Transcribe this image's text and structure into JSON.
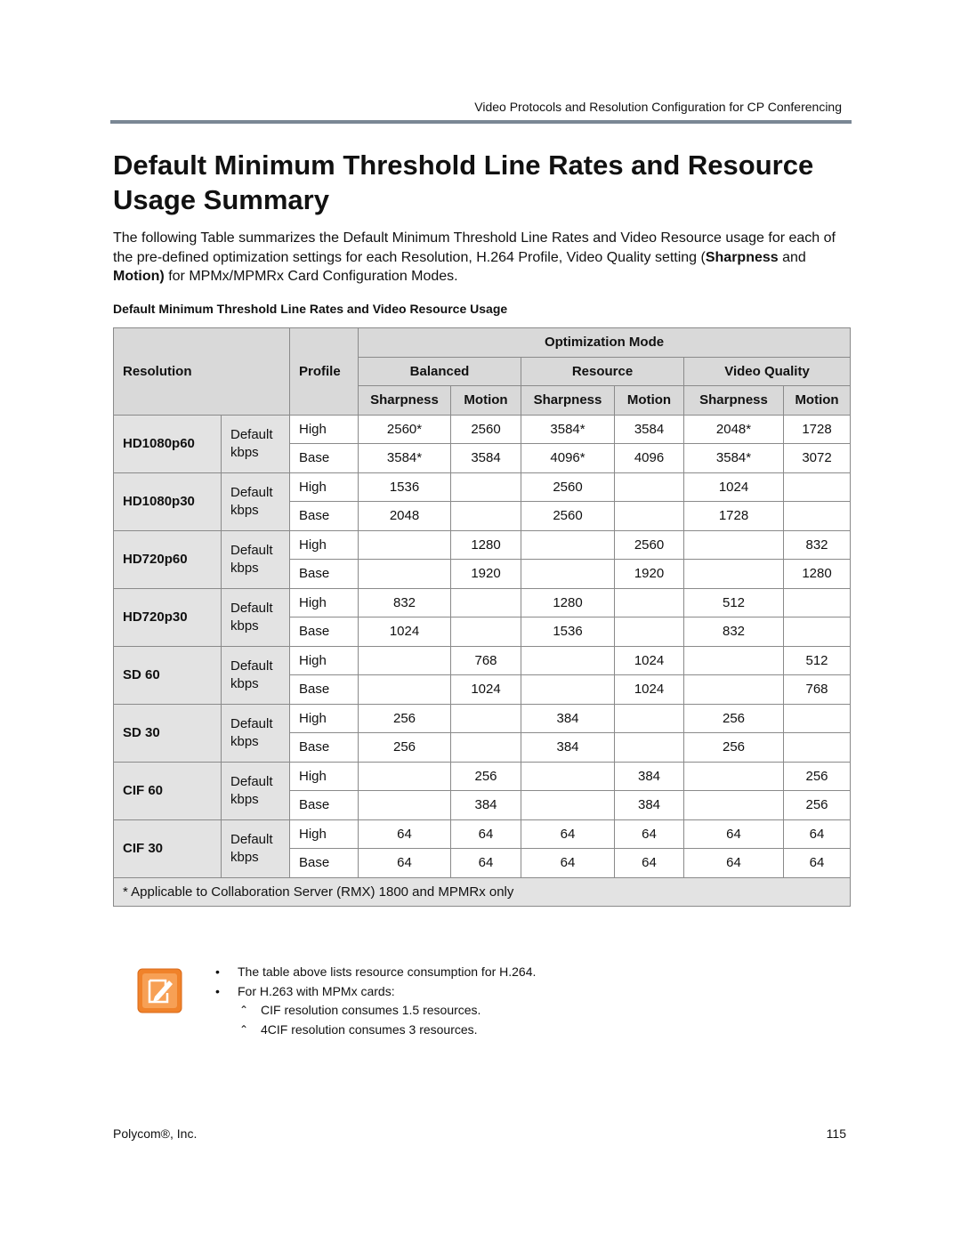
{
  "header": {
    "text": "Video Protocols and Resolution Configuration for CP Conferencing"
  },
  "title": "Default Minimum Threshold Line Rates and Resource Usage Summary",
  "intro": {
    "parts": [
      {
        "text": "The following Table summarizes the Default Minimum Threshold Line Rates and Video Resource usage for each of the pre-defined optimization settings for each Resolution, H.264 Profile, Video Quality setting (",
        "bold": false
      },
      {
        "text": "Sharpness",
        "bold": true
      },
      {
        "text": " and ",
        "bold": false
      },
      {
        "text": "Motion)",
        "bold": true
      },
      {
        "text": " for MPMx/MPMRx Card Configuration Modes.",
        "bold": false
      }
    ]
  },
  "table": {
    "caption": "Default Minimum Threshold Line Rates and Video Resource Usage",
    "headers": {
      "resolution": "Resolution",
      "profile": "Profile",
      "optimization": "Optimization Mode",
      "groups": [
        "Balanced",
        "Resource",
        "Video Quality"
      ],
      "sub": [
        "Sharpness",
        "Motion",
        "Sharpness",
        "Motion",
        "Sharpness",
        "Motion"
      ]
    },
    "rows": [
      {
        "resolution": "HD1080p60",
        "profile": "Default kbps",
        "lines": [
          {
            "quality": "High",
            "cells": [
              "2560*",
              "2560",
              "3584*",
              "3584",
              "2048*",
              "1728"
            ]
          },
          {
            "quality": "Base",
            "cells": [
              "3584*",
              "3584",
              "4096*",
              "4096",
              "3584*",
              "3072"
            ]
          }
        ]
      },
      {
        "resolution": "HD1080p30",
        "profile": "Default kbps",
        "lines": [
          {
            "quality": "High",
            "cells": [
              "1536",
              null,
              "2560",
              null,
              "1024",
              null
            ]
          },
          {
            "quality": "Base",
            "cells": [
              "2048",
              null,
              "2560",
              null,
              "1728",
              null
            ]
          }
        ]
      },
      {
        "resolution": "HD720p60",
        "profile": "Default kbps",
        "lines": [
          {
            "quality": "High",
            "cells": [
              null,
              "1280",
              null,
              "2560",
              null,
              "832"
            ]
          },
          {
            "quality": "Base",
            "cells": [
              null,
              "1920",
              null,
              "1920",
              null,
              "1280"
            ]
          }
        ]
      },
      {
        "resolution": "HD720p30",
        "profile": "Default kbps",
        "lines": [
          {
            "quality": "High",
            "cells": [
              "832",
              null,
              "1280",
              null,
              "512",
              null
            ]
          },
          {
            "quality": "Base",
            "cells": [
              "1024",
              null,
              "1536",
              null,
              "832",
              null
            ]
          }
        ]
      },
      {
        "resolution": "SD 60",
        "profile": "Default kbps",
        "lines": [
          {
            "quality": "High",
            "cells": [
              null,
              "768",
              null,
              "1024",
              null,
              "512"
            ]
          },
          {
            "quality": "Base",
            "cells": [
              null,
              "1024",
              null,
              "1024",
              null,
              "768"
            ]
          }
        ]
      },
      {
        "resolution": "SD 30",
        "profile": "Default kbps",
        "lines": [
          {
            "quality": "High",
            "cells": [
              "256",
              null,
              "384",
              null,
              "256",
              null
            ]
          },
          {
            "quality": "Base",
            "cells": [
              "256",
              null,
              "384",
              null,
              "256",
              null
            ]
          }
        ]
      },
      {
        "resolution": "CIF 60",
        "profile": "Default kbps",
        "lines": [
          {
            "quality": "High",
            "cells": [
              null,
              "256",
              null,
              "384",
              null,
              "256"
            ]
          },
          {
            "quality": "Base",
            "cells": [
              null,
              "384",
              null,
              "384",
              null,
              "256"
            ]
          }
        ]
      },
      {
        "resolution": "CIF 30",
        "profile": "Default kbps",
        "lines": [
          {
            "quality": "High",
            "cells": [
              "64",
              "64",
              "64",
              "64",
              "64",
              "64"
            ]
          },
          {
            "quality": "Base",
            "cells": [
              "64",
              "64",
              "64",
              "64",
              "64",
              "64"
            ]
          }
        ]
      }
    ],
    "footnote": "* Applicable to Collaboration Server (RMX) 1800 and MPMRx only"
  },
  "note": {
    "items": [
      {
        "text": "The table above lists resource consumption for H.264."
      },
      {
        "text": "For H.263 with MPMx cards:",
        "sub": [
          "CIF resolution consumes 1.5 resources.",
          "4CIF resolution consumes 3 resources."
        ]
      }
    ]
  },
  "footer": {
    "company": "Polycom®, Inc.",
    "page": "115"
  }
}
